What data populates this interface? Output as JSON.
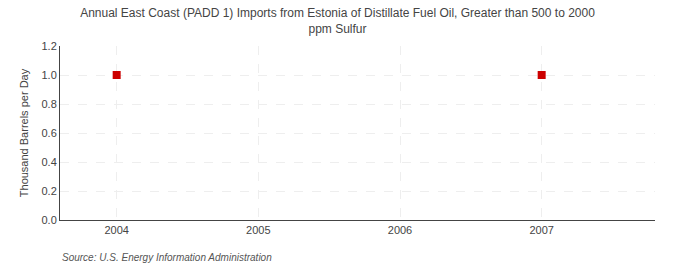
{
  "chart_data": {
    "type": "scatter",
    "title": "Annual East Coast (PADD 1) Imports from Estonia of Distillate Fuel Oil, Greater than 500 to 2000\nppm Sulfur",
    "y_label": "Thousand Barrels per Day",
    "annotations": [
      "Source: U.S. Energy Information Administration"
    ],
    "x": [
      2004,
      2007
    ],
    "values": [
      1.0,
      1.0
    ],
    "color": "#cc0000",
    "marker": "square",
    "xlim": [
      2003.6,
      2007.8
    ],
    "xticks": [
      2004,
      2005,
      2006,
      2007
    ],
    "ylim": [
      0.0,
      1.2
    ],
    "yticks": [
      {
        "value": 0.0,
        "label": "0.0"
      },
      0.2,
      0.4,
      0.6,
      0.8,
      {
        "value": 1.0,
        "label": "1.0"
      },
      1.2
    ],
    "grid": true
  }
}
